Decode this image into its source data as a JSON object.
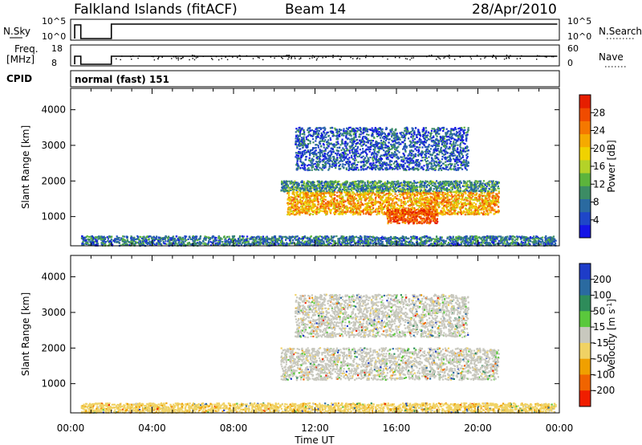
{
  "header": {
    "station": "Falkland Islands (fitACF)",
    "beam": "Beam 14",
    "date": "28/Apr/2010"
  },
  "top_panels": {
    "nsky_label": "N.Sky",
    "nsky_ticks": [
      "10^5",
      "10^0"
    ],
    "nsearch_label": "N.Search",
    "nsearch_ticks": [
      "10^5",
      "10^0"
    ],
    "freq_label_1": "Freq.",
    "freq_label_2": "[MHz]",
    "freq_ticks": [
      "18",
      "8"
    ],
    "nave_label": "Nave",
    "nave_ticks": [
      "60",
      "0"
    ],
    "cpid_label": "CPID",
    "cpid_value": "normal (fast) 151"
  },
  "chart_data": [
    {
      "type": "heatmap",
      "name": "power",
      "ylabel": "Slant Range [km]",
      "xlabel": "Time UT",
      "x_ticks": [
        "00:00",
        "04:00",
        "08:00",
        "12:00",
        "16:00",
        "20:00",
        "00:00"
      ],
      "xlim_hours": [
        0,
        24
      ],
      "y_ticks": [
        1000,
        2000,
        3000,
        4000
      ],
      "ylim": [
        180,
        4600
      ],
      "colorbar": {
        "label": "Power [dB]",
        "ticks": [
          4,
          8,
          12,
          16,
          20,
          24,
          28
        ],
        "range": [
          0,
          32
        ],
        "colors": [
          "#1414e6",
          "#1e46c8",
          "#2a6aa0",
          "#3c8c64",
          "#5cb43c",
          "#b4d228",
          "#f0d200",
          "#f5aa00",
          "#f57800",
          "#f04b00",
          "#e61e00"
        ]
      },
      "regions": [
        {
          "t_start": 10.6,
          "t_end": 21.0,
          "r_low": 1050,
          "r_high": 1700,
          "level_db": 22
        },
        {
          "t_start": 10.3,
          "t_end": 21.0,
          "r_low": 1700,
          "r_high": 2000,
          "level_db": 10
        },
        {
          "t_start": 11.0,
          "t_end": 19.5,
          "r_low": 2300,
          "r_high": 3500,
          "level_db": 6
        },
        {
          "t_start": 15.5,
          "t_end": 18.0,
          "r_low": 800,
          "r_high": 1200,
          "level_db": 28
        },
        {
          "t_start": 0.5,
          "t_end": 23.8,
          "r_low": 180,
          "r_high": 450,
          "level_db": 8
        }
      ]
    },
    {
      "type": "heatmap",
      "name": "velocity",
      "ylabel": "Slant Range [km]",
      "xlabel": "Time UT",
      "x_ticks": [
        "00:00",
        "04:00",
        "08:00",
        "12:00",
        "16:00",
        "20:00",
        "00:00"
      ],
      "xlim_hours": [
        0,
        24
      ],
      "y_ticks": [
        1000,
        2000,
        3000,
        4000
      ],
      "ylim": [
        180,
        4600
      ],
      "colorbar": {
        "label": "Velocity [m s^-1]",
        "ticks": [
          200,
          100,
          50,
          15,
          -15,
          -50,
          -100,
          -200
        ],
        "range": [
          -250,
          250
        ],
        "colors": [
          "#1e3cc8",
          "#2a6aa0",
          "#2e8c5a",
          "#5ac83c",
          "#c8c8be",
          "#f0d264",
          "#f0a000",
          "#f06400",
          "#f01e00"
        ]
      },
      "regions": [
        {
          "t_start": 10.3,
          "t_end": 21.0,
          "r_low": 1100,
          "r_high": 2000,
          "velocity": 0
        },
        {
          "t_start": 11.0,
          "t_end": 19.5,
          "r_low": 2300,
          "r_high": 3500,
          "velocity": 0
        },
        {
          "t_start": 0.5,
          "t_end": 23.8,
          "r_low": 180,
          "r_high": 450,
          "velocity": -60
        }
      ]
    }
  ]
}
